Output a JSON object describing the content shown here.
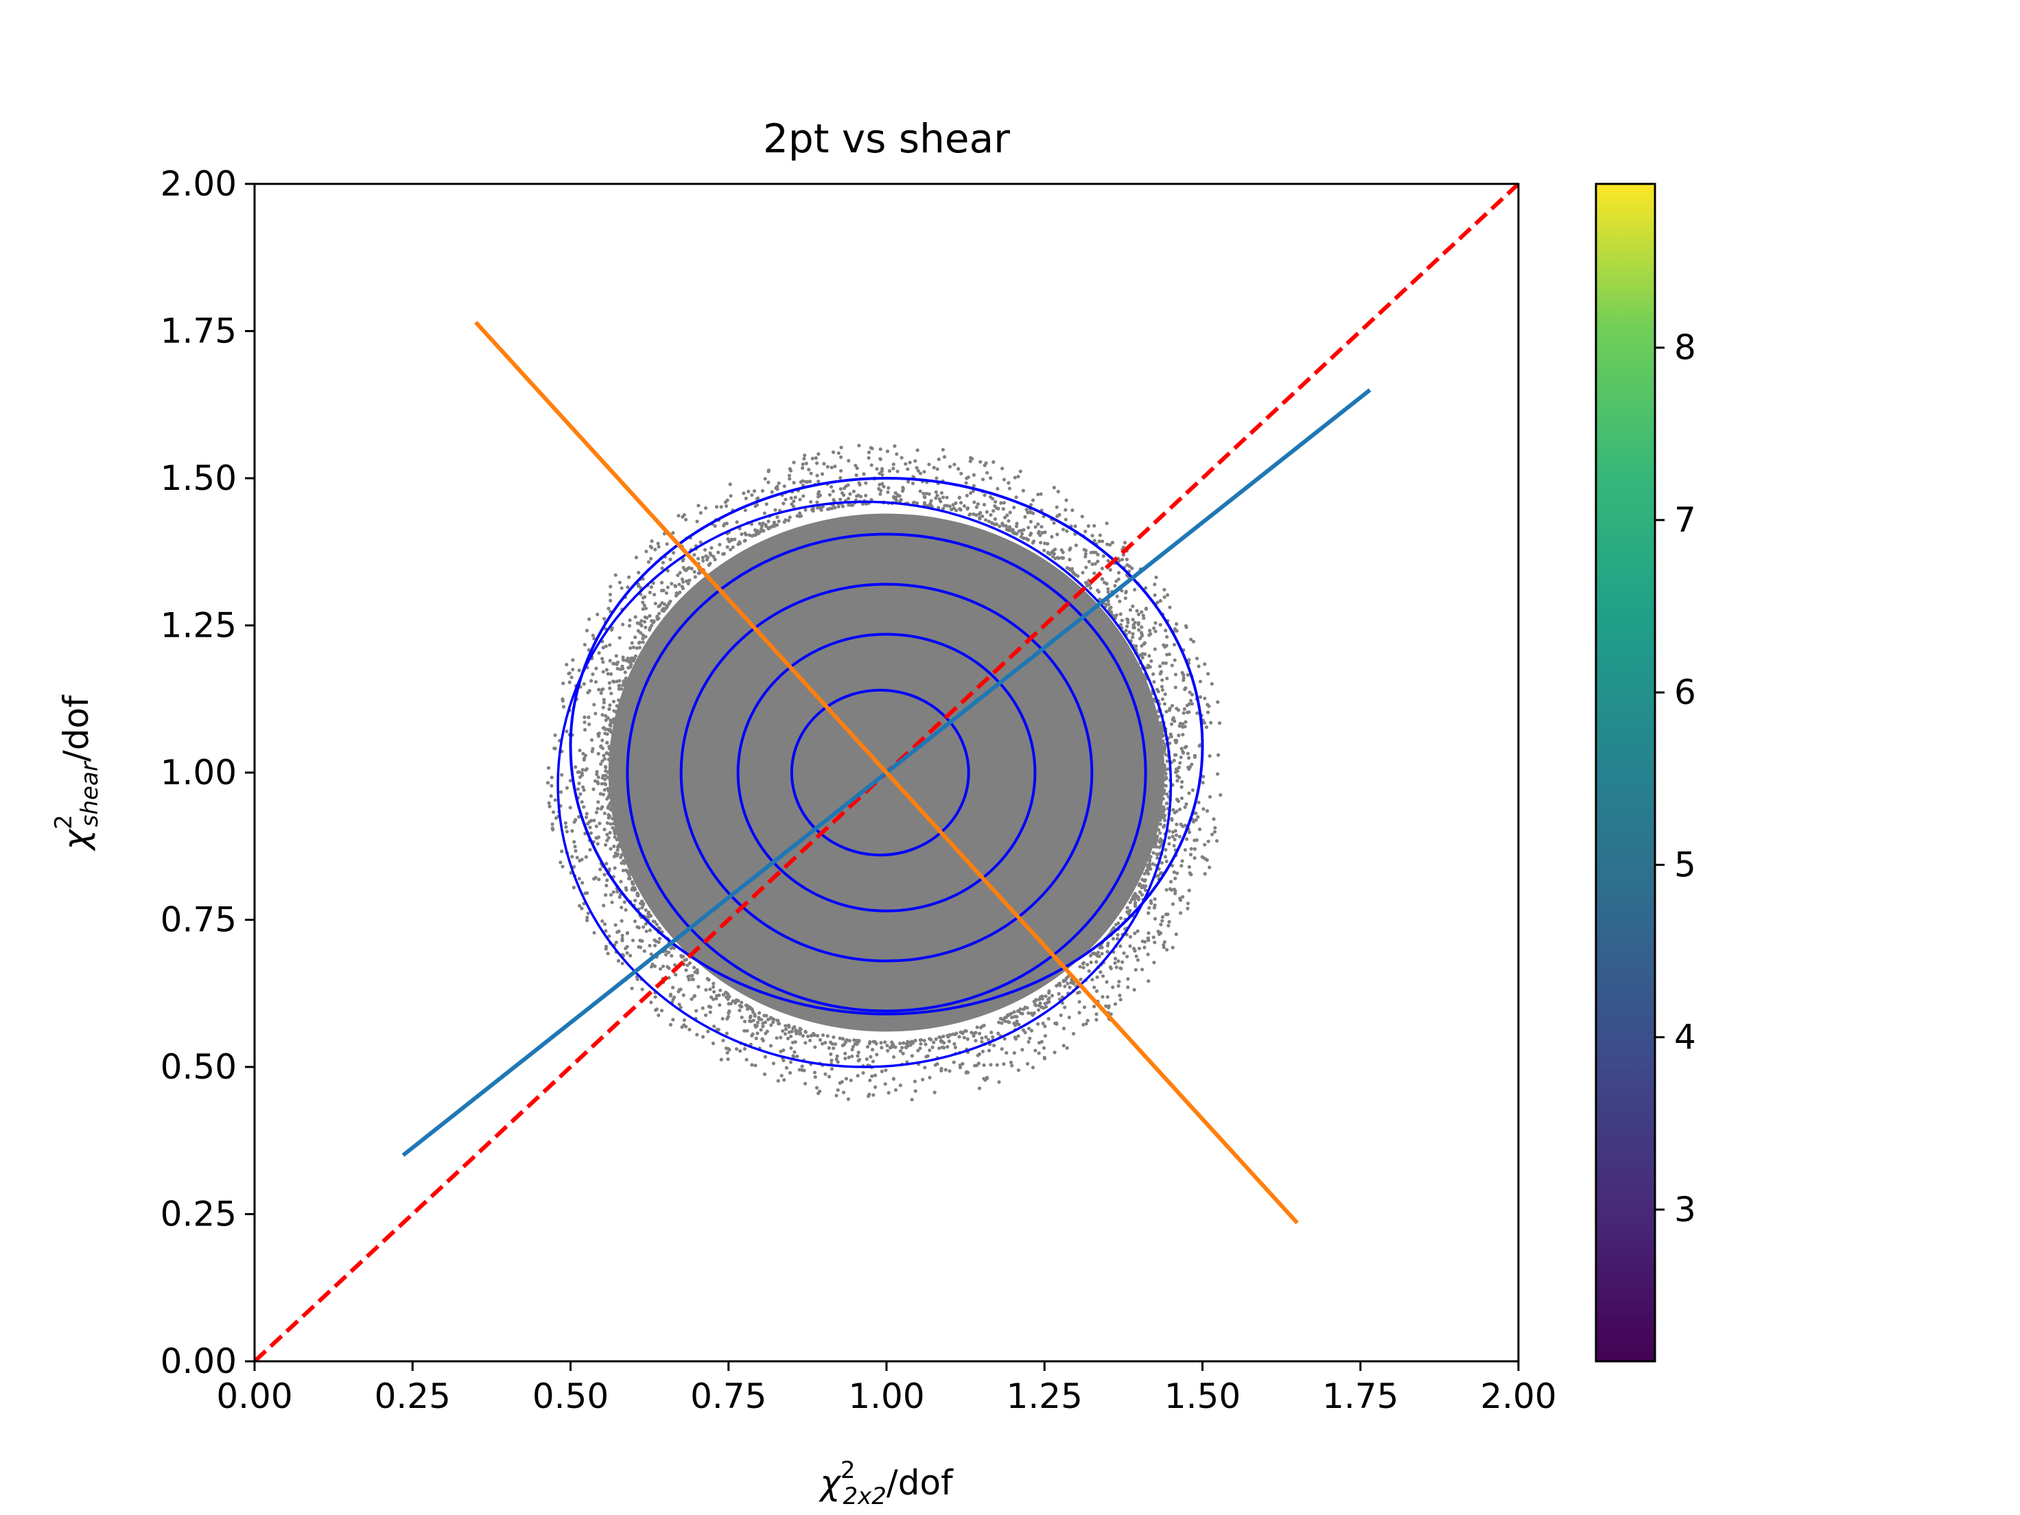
{
  "chart_data": {
    "type": "scatter",
    "title": "2pt vs shear",
    "xlabel": {
      "symbol": "χ",
      "sup": "2",
      "sub": "2x2",
      "suffix": "/dof"
    },
    "ylabel": {
      "symbol": "χ",
      "sup": "2",
      "sub": "shear",
      "suffix": "/dof"
    },
    "xlim": [
      0.0,
      2.0
    ],
    "ylim": [
      0.0,
      2.0
    ],
    "xticks": [
      "0.00",
      "0.25",
      "0.50",
      "0.75",
      "1.00",
      "1.25",
      "1.50",
      "1.75",
      "2.00"
    ],
    "yticks": [
      "0.00",
      "0.25",
      "0.50",
      "0.75",
      "1.00",
      "1.25",
      "1.50",
      "1.75",
      "2.00"
    ],
    "grid": false,
    "scatter_cloud": {
      "color": "#808080",
      "center": [
        1.0,
        1.0
      ],
      "radius_x": 0.44,
      "radius_y": 0.44,
      "extent_x": [
        0.57,
        1.58
      ],
      "extent_y": [
        0.55,
        1.65
      ]
    },
    "contours": {
      "color": "#0000ff",
      "levels": [
        {
          "cx": 0.99,
          "cy": 1.0,
          "rx": 0.14,
          "ry": 0.14
        },
        {
          "cx": 1.0,
          "cy": 1.0,
          "rx": 0.235,
          "ry": 0.235
        },
        {
          "cx": 1.0,
          "cy": 1.0,
          "rx": 0.325,
          "ry": 0.32
        },
        {
          "cx": 1.0,
          "cy": 1.0,
          "rx": 0.41,
          "ry": 0.405
        },
        {
          "cx": 1.0,
          "cy": 1.045,
          "rx": 0.5,
          "ry": 0.455
        },
        {
          "cx": 0.965,
          "cy": 0.98,
          "rx": 0.485,
          "ry": 0.48
        }
      ]
    },
    "lines": [
      {
        "color": "#ff0000",
        "style": "dashed",
        "x": [
          0.0,
          2.0
        ],
        "y": [
          0.0,
          2.0
        ]
      },
      {
        "color": "#1f77b4",
        "style": "solid",
        "x": [
          0.235,
          1.765
        ],
        "y": [
          0.35,
          1.65
        ]
      },
      {
        "color": "#ff7f0e",
        "style": "solid",
        "x": [
          0.35,
          1.65
        ],
        "y": [
          1.765,
          0.235
        ]
      }
    ],
    "colorbar": {
      "colormap": "viridis",
      "ticks": [
        "3",
        "4",
        "5",
        "6",
        "7",
        "8"
      ],
      "range": [
        2.12,
        8.95
      ]
    }
  }
}
